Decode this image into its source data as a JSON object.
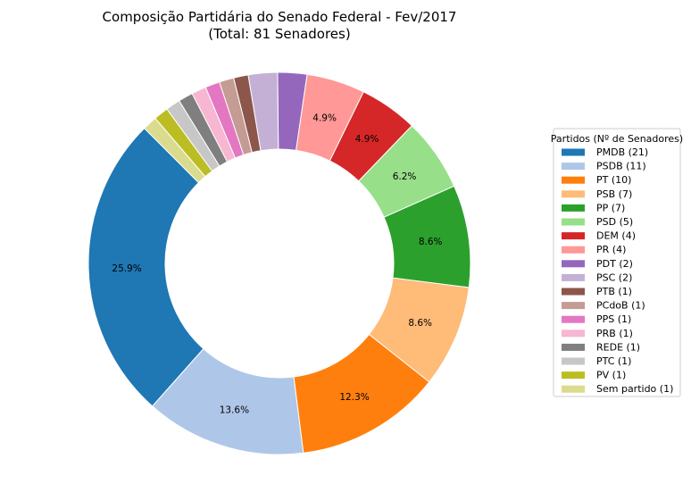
{
  "chart_data": {
    "type": "pie",
    "title": "Composição Partidária do Senado Federal - Fev/2017",
    "subtitle": "(Total: 81 Senadores)",
    "donut": true,
    "start_angle_deg": 135,
    "direction": "counterclockwise",
    "legend": {
      "title": "Partidos (Nº de Senadores)",
      "placement": "right"
    },
    "slices": [
      {
        "label": "PMDB (21)",
        "value": 21,
        "pct_label": "25.9%",
        "color": "#1f77b4"
      },
      {
        "label": "PSDB (11)",
        "value": 11,
        "pct_label": "13.6%",
        "color": "#aec7e8"
      },
      {
        "label": "PT (10)",
        "value": 10,
        "pct_label": "12.3%",
        "color": "#ff7f0e"
      },
      {
        "label": "PSB (7)",
        "value": 7,
        "pct_label": "8.6%",
        "color": "#ffbb78"
      },
      {
        "label": "PP (7)",
        "value": 7,
        "pct_label": "8.6%",
        "color": "#2ca02c"
      },
      {
        "label": "PSD (5)",
        "value": 5,
        "pct_label": "6.2%",
        "color": "#98df8a"
      },
      {
        "label": "DEM (4)",
        "value": 4,
        "pct_label": "4.9%",
        "color": "#d62728"
      },
      {
        "label": "PR (4)",
        "value": 4,
        "pct_label": "4.9%",
        "color": "#ff9896"
      },
      {
        "label": "PDT (2)",
        "value": 2,
        "pct_label": "",
        "color": "#9467bd"
      },
      {
        "label": "PSC (2)",
        "value": 2,
        "pct_label": "",
        "color": "#c5b0d5"
      },
      {
        "label": "PTB (1)",
        "value": 1,
        "pct_label": "",
        "color": "#8c564b"
      },
      {
        "label": "PCdoB (1)",
        "value": 1,
        "pct_label": "",
        "color": "#c49c94"
      },
      {
        "label": "PPS (1)",
        "value": 1,
        "pct_label": "",
        "color": "#e377c2"
      },
      {
        "label": "PRB (1)",
        "value": 1,
        "pct_label": "",
        "color": "#f7b6d2"
      },
      {
        "label": "REDE (1)",
        "value": 1,
        "pct_label": "",
        "color": "#7f7f7f"
      },
      {
        "label": "PTC (1)",
        "value": 1,
        "pct_label": "",
        "color": "#c7c7c7"
      },
      {
        "label": "PV (1)",
        "value": 1,
        "pct_label": "",
        "color": "#bcbd22"
      },
      {
        "label": "Sem partido (1)",
        "value": 1,
        "pct_label": "",
        "color": "#dbdb8d"
      }
    ]
  }
}
